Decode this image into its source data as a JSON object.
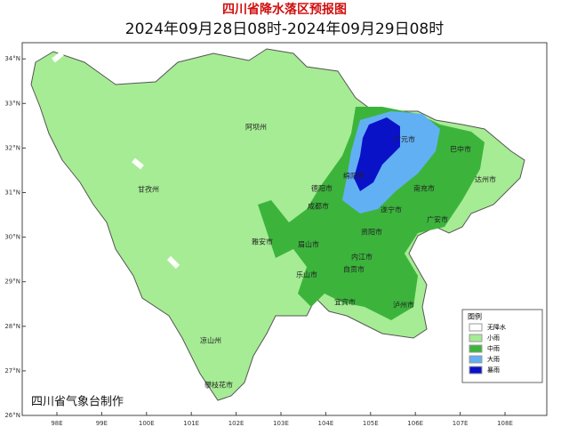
{
  "header": {
    "title": "四川省降水落区预报图",
    "subtitle": "2024年09月28日08时-2024年09月29日08时"
  },
  "lat_ticks": [
    {
      "value": 34,
      "label": "34°N"
    },
    {
      "value": 33,
      "label": "33°N"
    },
    {
      "value": 32,
      "label": "32°N"
    },
    {
      "value": 31,
      "label": "31°N"
    },
    {
      "value": 30,
      "label": "30°N"
    },
    {
      "value": 29,
      "label": "29°N"
    },
    {
      "value": 28,
      "label": "28°N"
    },
    {
      "value": 27,
      "label": "27°N"
    },
    {
      "value": 26,
      "label": "26°N"
    }
  ],
  "lon_ticks": [
    {
      "value": 98,
      "label": "98E"
    },
    {
      "value": 99,
      "label": "99E"
    },
    {
      "value": 100,
      "label": "100E"
    },
    {
      "value": 101,
      "label": "101E"
    },
    {
      "value": 102,
      "label": "102E"
    },
    {
      "value": 103,
      "label": "103E"
    },
    {
      "value": 104,
      "label": "104E"
    },
    {
      "value": 105,
      "label": "105E"
    },
    {
      "value": 106,
      "label": "106E"
    },
    {
      "value": 107,
      "label": "107E"
    },
    {
      "value": 108,
      "label": "108E"
    }
  ],
  "cities": [
    "阿坝州",
    "甘孜州",
    "广元市",
    "巴中市",
    "绵阳市",
    "德阳市",
    "成都市",
    "南充市",
    "达州市",
    "遂宁市",
    "广安市",
    "眉山市",
    "雅安市",
    "资阳市",
    "内江市",
    "乐山市",
    "自贡市",
    "宜宾市",
    "泸州市",
    "凉山州",
    "攀枝花市"
  ],
  "legend": {
    "title": "图例",
    "items": [
      {
        "name": "无降水",
        "color": "#ffffff"
      },
      {
        "name": "小雨",
        "color": "#a6ec94"
      },
      {
        "name": "中雨",
        "color": "#3cb43c"
      },
      {
        "name": "大雨",
        "color": "#62b0f4"
      },
      {
        "name": "暴雨",
        "color": "#0a12c8"
      }
    ]
  },
  "credit": "四川省气象台制作"
}
